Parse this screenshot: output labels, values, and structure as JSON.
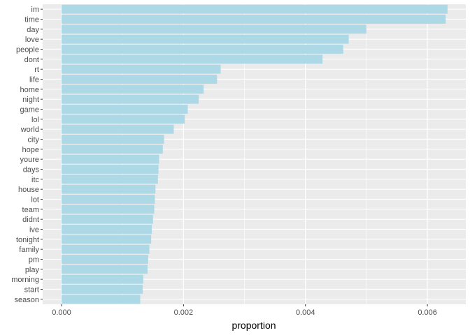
{
  "chart_data": {
    "type": "bar",
    "orientation": "horizontal",
    "categories": [
      "im",
      "time",
      "day",
      "love",
      "people",
      "dont",
      "rt",
      "life",
      "home",
      "night",
      "game",
      "lol",
      "world",
      "city",
      "hope",
      "youre",
      "days",
      "itc",
      "house",
      "lot",
      "team",
      "didnt",
      "ive",
      "tonight",
      "family",
      "pm",
      "play",
      "morning",
      "start",
      "season"
    ],
    "values": [
      0.00633,
      0.0063,
      0.005,
      0.00471,
      0.00462,
      0.00428,
      0.00261,
      0.00255,
      0.00233,
      0.00225,
      0.00207,
      0.00202,
      0.00184,
      0.00168,
      0.00166,
      0.0016,
      0.00159,
      0.00158,
      0.00154,
      0.00153,
      0.00152,
      0.0015,
      0.00148,
      0.00147,
      0.00144,
      0.00142,
      0.00141,
      0.00134,
      0.00133,
      0.00129
    ],
    "xlabel": "proportion",
    "ylabel": "",
    "xlim": [
      -0.00031,
      0.00663
    ],
    "x_ticks": [
      0.0,
      0.002,
      0.004,
      0.006
    ],
    "x_tick_labels": [
      "0.000",
      "0.002",
      "0.004",
      "0.006"
    ],
    "grid": true,
    "bar_color": "#add8e6",
    "panel_color": "#ebebeb",
    "grid_color": "#ffffff"
  }
}
